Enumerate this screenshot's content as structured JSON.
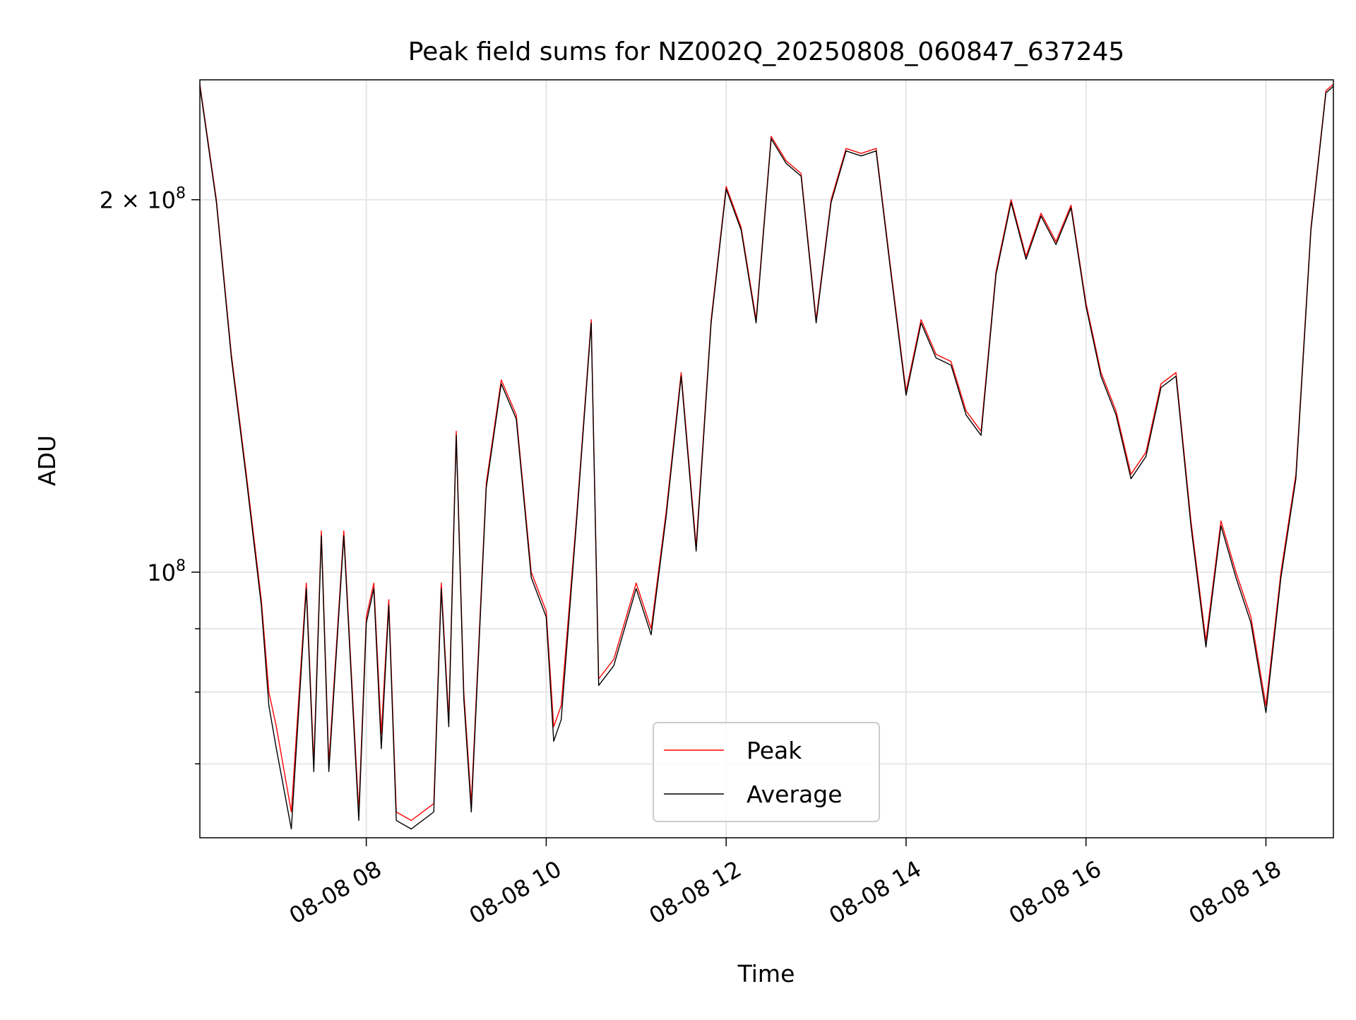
{
  "chart_data": {
    "type": "line",
    "title": "Peak field sums for NZ002Q_20250808_060847_637245",
    "xlabel": "Time",
    "ylabel": "ADU",
    "yscale": "log",
    "xlim": [
      "2025-08-08T06:09",
      "2025-08-08T18:45"
    ],
    "ylim": [
      61000000,
      250000000
    ],
    "x_ticks": [
      {
        "value": "2025-08-08T08:00",
        "label": "08-08 08"
      },
      {
        "value": "2025-08-08T10:00",
        "label": "08-08 10"
      },
      {
        "value": "2025-08-08T12:00",
        "label": "08-08 12"
      },
      {
        "value": "2025-08-08T14:00",
        "label": "08-08 14"
      },
      {
        "value": "2025-08-08T16:00",
        "label": "08-08 16"
      },
      {
        "value": "2025-08-08T18:00",
        "label": "08-08 18"
      }
    ],
    "y_ticks": [
      {
        "value": 100000000,
        "label": "10^8",
        "major": true
      },
      {
        "value": 200000000,
        "label": "2×10^8",
        "major": true
      },
      {
        "value": 60000000,
        "major": false
      },
      {
        "value": 70000000,
        "major": false
      },
      {
        "value": 80000000,
        "major": false
      },
      {
        "value": 90000000,
        "major": false
      }
    ],
    "grid": true,
    "legend": {
      "location": "lower center",
      "entries": [
        "Peak",
        "Average"
      ]
    },
    "series": [
      {
        "name": "Peak",
        "color": "#ff0000",
        "x": [
          "2025-08-08T06:09",
          "2025-08-08T06:20",
          "2025-08-08T06:30",
          "2025-08-08T06:40",
          "2025-08-08T06:50",
          "2025-08-08T06:55",
          "2025-08-08T07:00",
          "2025-08-08T07:10",
          "2025-08-08T07:20",
          "2025-08-08T07:25",
          "2025-08-08T07:30",
          "2025-08-08T07:35",
          "2025-08-08T07:45",
          "2025-08-08T07:55",
          "2025-08-08T08:00",
          "2025-08-08T08:05",
          "2025-08-08T08:10",
          "2025-08-08T08:15",
          "2025-08-08T08:20",
          "2025-08-08T08:30",
          "2025-08-08T08:45",
          "2025-08-08T08:50",
          "2025-08-08T08:55",
          "2025-08-08T09:00",
          "2025-08-08T09:05",
          "2025-08-08T09:10",
          "2025-08-08T09:20",
          "2025-08-08T09:30",
          "2025-08-08T09:40",
          "2025-08-08T09:50",
          "2025-08-08T10:00",
          "2025-08-08T10:05",
          "2025-08-08T10:10",
          "2025-08-08T10:20",
          "2025-08-08T10:30",
          "2025-08-08T10:35",
          "2025-08-08T10:45",
          "2025-08-08T11:00",
          "2025-08-08T11:10",
          "2025-08-08T11:20",
          "2025-08-08T11:30",
          "2025-08-08T11:40",
          "2025-08-08T11:50",
          "2025-08-08T12:00",
          "2025-08-08T12:10",
          "2025-08-08T12:20",
          "2025-08-08T12:30",
          "2025-08-08T12:40",
          "2025-08-08T12:50",
          "2025-08-08T13:00",
          "2025-08-08T13:10",
          "2025-08-08T13:20",
          "2025-08-08T13:30",
          "2025-08-08T13:40",
          "2025-08-08T13:50",
          "2025-08-08T14:00",
          "2025-08-08T14:10",
          "2025-08-08T14:20",
          "2025-08-08T14:30",
          "2025-08-08T14:40",
          "2025-08-08T14:50",
          "2025-08-08T15:00",
          "2025-08-08T15:10",
          "2025-08-08T15:20",
          "2025-08-08T15:30",
          "2025-08-08T15:40",
          "2025-08-08T15:50",
          "2025-08-08T16:00",
          "2025-08-08T16:10",
          "2025-08-08T16:20",
          "2025-08-08T16:30",
          "2025-08-08T16:40",
          "2025-08-08T16:50",
          "2025-08-08T17:00",
          "2025-08-08T17:10",
          "2025-08-08T17:20",
          "2025-08-08T17:30",
          "2025-08-08T17:40",
          "2025-08-08T17:50",
          "2025-08-08T18:00",
          "2025-08-08T18:10",
          "2025-08-08T18:20",
          "2025-08-08T18:30",
          "2025-08-08T18:40",
          "2025-08-08T18:45"
        ],
        "y": [
          248000000,
          200000000,
          150000000,
          120000000,
          95000000,
          80000000,
          75000000,
          64000000,
          98000000,
          70000000,
          108000000,
          70000000,
          108000000,
          64000000,
          92000000,
          98000000,
          74000000,
          95000000,
          64000000,
          63000000,
          65000000,
          98000000,
          76000000,
          130000000,
          80000000,
          65000000,
          118000000,
          143000000,
          134000000,
          100000000,
          93000000,
          75000000,
          78000000,
          110000000,
          160000000,
          82000000,
          85000000,
          98000000,
          90000000,
          112000000,
          145000000,
          105000000,
          160000000,
          205000000,
          190000000,
          160000000,
          225000000,
          215000000,
          210000000,
          160000000,
          200000000,
          220000000,
          218000000,
          220000000,
          175000000,
          140000000,
          160000000,
          150000000,
          148000000,
          135000000,
          130000000,
          175000000,
          200000000,
          180000000,
          195000000,
          185000000,
          198000000,
          165000000,
          145000000,
          135000000,
          120000000,
          125000000,
          142000000,
          145000000,
          110000000,
          88000000,
          110000000,
          100000000,
          92000000,
          78000000,
          100000000,
          120000000,
          190000000,
          245000000,
          248000000
        ]
      },
      {
        "name": "Average",
        "color": "#000000",
        "x": [
          "2025-08-08T06:09",
          "2025-08-08T06:20",
          "2025-08-08T06:30",
          "2025-08-08T06:40",
          "2025-08-08T06:50",
          "2025-08-08T06:55",
          "2025-08-08T07:00",
          "2025-08-08T07:10",
          "2025-08-08T07:20",
          "2025-08-08T07:25",
          "2025-08-08T07:30",
          "2025-08-08T07:35",
          "2025-08-08T07:45",
          "2025-08-08T07:55",
          "2025-08-08T08:00",
          "2025-08-08T08:05",
          "2025-08-08T08:10",
          "2025-08-08T08:15",
          "2025-08-08T08:20",
          "2025-08-08T08:30",
          "2025-08-08T08:45",
          "2025-08-08T08:50",
          "2025-08-08T08:55",
          "2025-08-08T09:00",
          "2025-08-08T09:05",
          "2025-08-08T09:10",
          "2025-08-08T09:20",
          "2025-08-08T09:30",
          "2025-08-08T09:40",
          "2025-08-08T09:50",
          "2025-08-08T10:00",
          "2025-08-08T10:05",
          "2025-08-08T10:10",
          "2025-08-08T10:20",
          "2025-08-08T10:30",
          "2025-08-08T10:35",
          "2025-08-08T10:45",
          "2025-08-08T11:00",
          "2025-08-08T11:10",
          "2025-08-08T11:20",
          "2025-08-08T11:30",
          "2025-08-08T11:40",
          "2025-08-08T11:50",
          "2025-08-08T12:00",
          "2025-08-08T12:10",
          "2025-08-08T12:20",
          "2025-08-08T12:30",
          "2025-08-08T12:40",
          "2025-08-08T12:50",
          "2025-08-08T13:00",
          "2025-08-08T13:10",
          "2025-08-08T13:20",
          "2025-08-08T13:30",
          "2025-08-08T13:40",
          "2025-08-08T13:50",
          "2025-08-08T14:00",
          "2025-08-08T14:10",
          "2025-08-08T14:20",
          "2025-08-08T14:30",
          "2025-08-08T14:40",
          "2025-08-08T14:50",
          "2025-08-08T15:00",
          "2025-08-08T15:10",
          "2025-08-08T15:20",
          "2025-08-08T15:30",
          "2025-08-08T15:40",
          "2025-08-08T15:50",
          "2025-08-08T16:00",
          "2025-08-08T16:10",
          "2025-08-08T16:20",
          "2025-08-08T16:30",
          "2025-08-08T16:40",
          "2025-08-08T16:50",
          "2025-08-08T17:00",
          "2025-08-08T17:10",
          "2025-08-08T17:20",
          "2025-08-08T17:30",
          "2025-08-08T17:40",
          "2025-08-08T17:50",
          "2025-08-08T18:00",
          "2025-08-08T18:10",
          "2025-08-08T18:20",
          "2025-08-08T18:30",
          "2025-08-08T18:40",
          "2025-08-08T18:45"
        ],
        "y": [
          247000000,
          199000000,
          149000000,
          119000000,
          94000000,
          78000000,
          72000000,
          62000000,
          97000000,
          69000000,
          107000000,
          69000000,
          107000000,
          63000000,
          91000000,
          97000000,
          72000000,
          94000000,
          63000000,
          62000000,
          64000000,
          97000000,
          75000000,
          129000000,
          79000000,
          64000000,
          117000000,
          142000000,
          133000000,
          99000000,
          92000000,
          73000000,
          76000000,
          109000000,
          159000000,
          81000000,
          84000000,
          97000000,
          89000000,
          111000000,
          144000000,
          104000000,
          159000000,
          204000000,
          189000000,
          159000000,
          224000000,
          214000000,
          209000000,
          159000000,
          199000000,
          219000000,
          217000000,
          219000000,
          174000000,
          139000000,
          159000000,
          149000000,
          147000000,
          134000000,
          129000000,
          174000000,
          199000000,
          179000000,
          194000000,
          184000000,
          197000000,
          164000000,
          144000000,
          134000000,
          119000000,
          124000000,
          141000000,
          144000000,
          109000000,
          87000000,
          109000000,
          99000000,
          91000000,
          77000000,
          99000000,
          119000000,
          189000000,
          244000000,
          247000000
        ]
      }
    ]
  }
}
